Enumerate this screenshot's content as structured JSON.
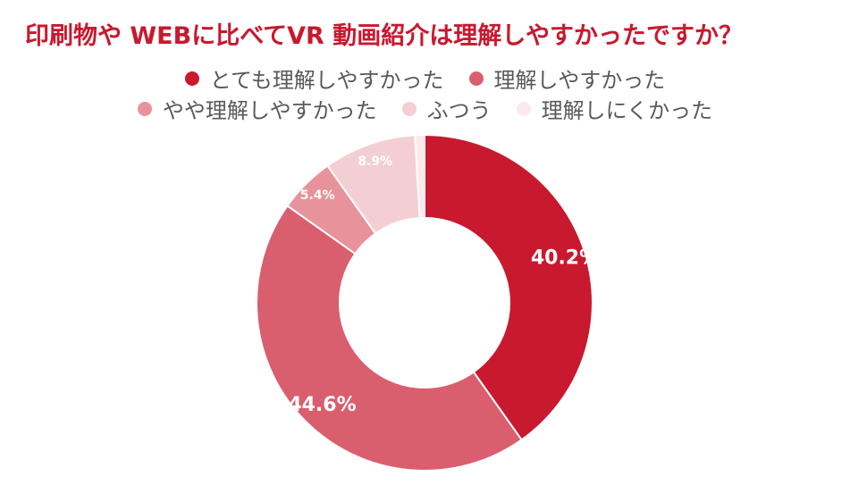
{
  "title": "印刷物や WEBに比べてVR 動画紹介は理解しやすかったですか？",
  "chart_data": {
    "type": "pie",
    "categories": [
      "とても理解しやすかった",
      "理解しやすかった",
      "やや理解しやすかった",
      "ふつう",
      "理解しにくかった"
    ],
    "values": [
      40.2,
      44.6,
      5.4,
      8.9,
      0.9
    ],
    "labels": [
      "40.2%",
      "44.6%",
      "5.4%",
      "8.9%",
      ""
    ],
    "colors": [
      "#c8192f",
      "#d95f6e",
      "#e8929c",
      "#f3cfd3",
      "#fbe9eb"
    ],
    "donut": true,
    "legend_position": "top"
  }
}
